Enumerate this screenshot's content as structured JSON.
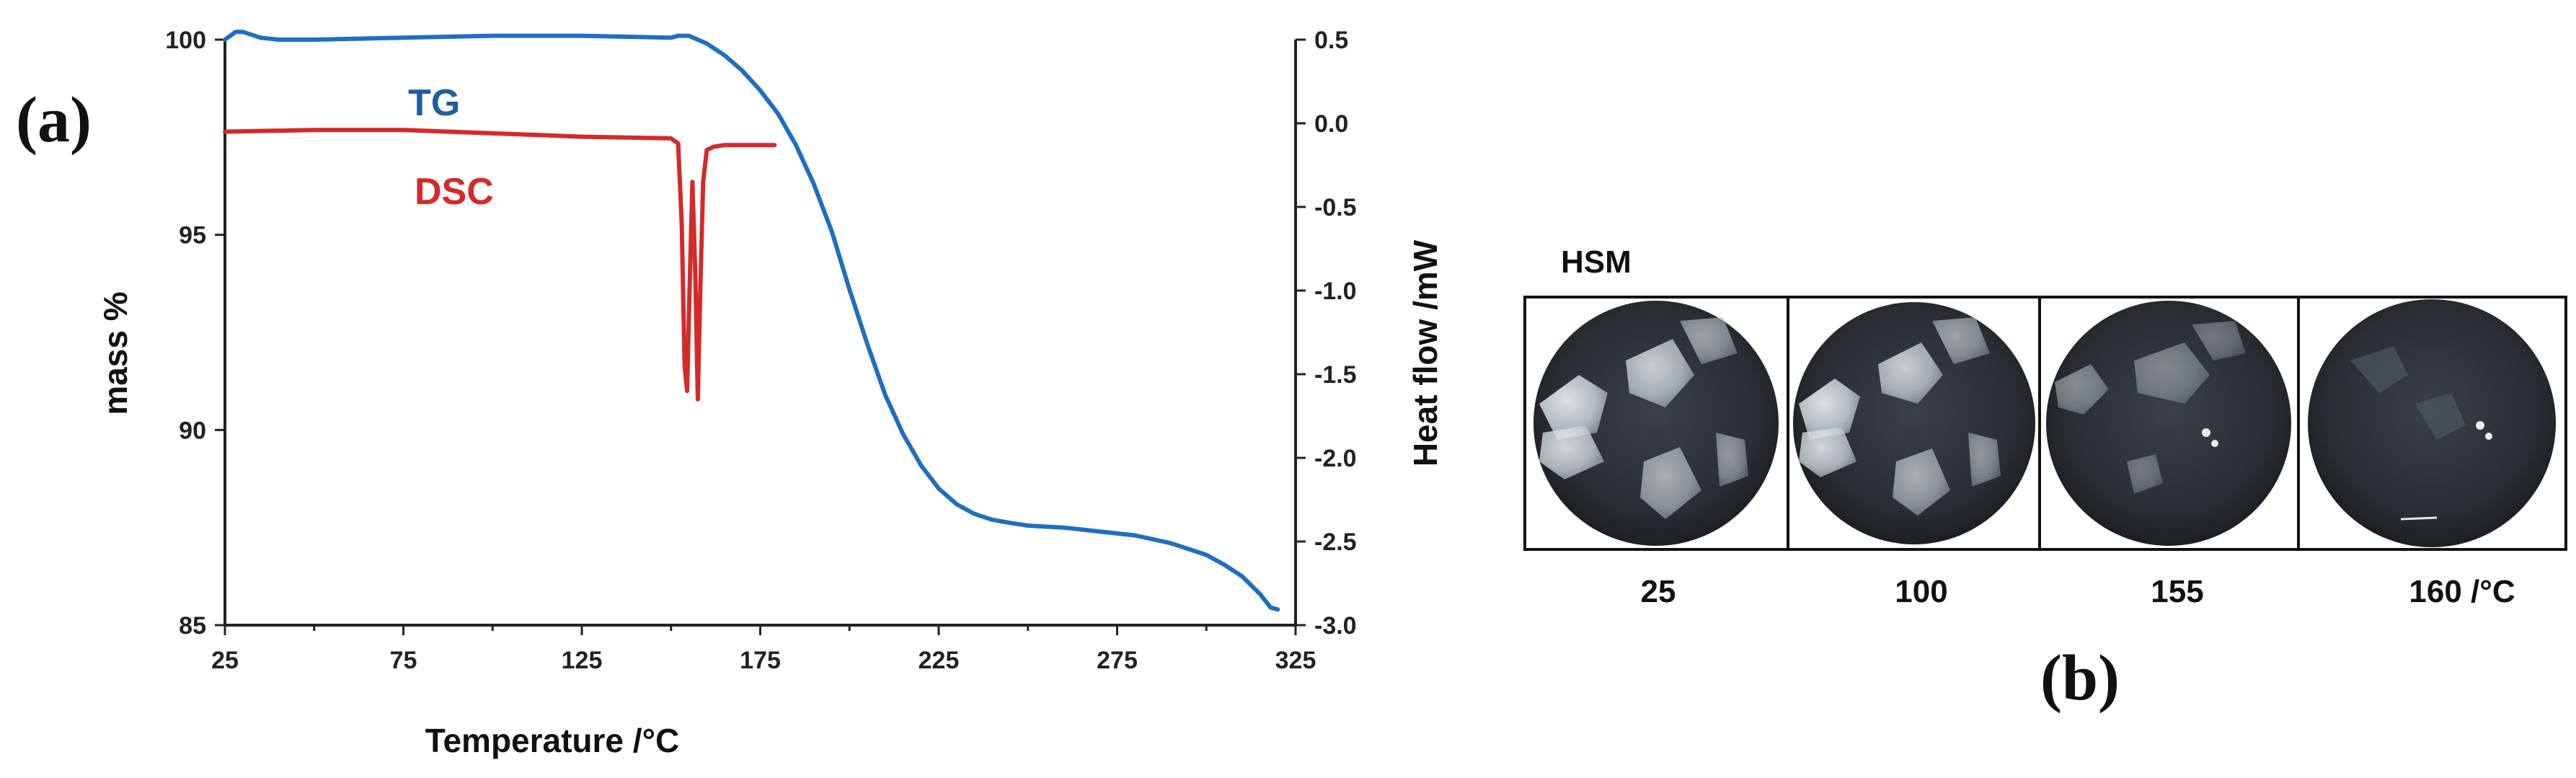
{
  "chart_data": [
    {
      "panel": "(a)",
      "type": "line",
      "xlabel": "Temperature /°C",
      "xlim": [
        25,
        325
      ],
      "x_ticks": [
        "25",
        "75",
        "125",
        "175",
        "225",
        "275",
        "325"
      ],
      "y_left": {
        "label": "mass %",
        "lim": [
          85,
          100
        ],
        "ticks": [
          "100",
          "95",
          "90",
          "85"
        ]
      },
      "y_right": {
        "label": "Heat flow /mW",
        "lim": [
          -3.0,
          0.5
        ],
        "ticks": [
          "0.5",
          "0.0",
          "-0.5",
          "-1.0",
          "-1.5",
          "-2.0",
          "-2.5",
          "-3.0"
        ]
      },
      "series": [
        {
          "name": "TG",
          "axis": "left",
          "color": "#1f6fc0",
          "x": [
            25,
            28,
            30,
            35,
            40,
            50,
            75,
            100,
            125,
            150,
            152,
            155,
            160,
            165,
            170,
            175,
            180,
            185,
            190,
            195,
            200,
            205,
            210,
            215,
            220,
            225,
            230,
            235,
            240,
            245,
            250,
            260,
            270,
            280,
            290,
            300,
            305,
            310,
            315,
            318,
            320
          ],
          "y": [
            100.0,
            100.2,
            100.2,
            100.05,
            100.0,
            100.0,
            100.05,
            100.1,
            100.1,
            100.05,
            100.1,
            100.1,
            99.9,
            99.6,
            99.2,
            98.7,
            98.1,
            97.3,
            96.3,
            95.1,
            93.6,
            92.2,
            90.9,
            89.9,
            89.1,
            88.5,
            88.1,
            87.85,
            87.7,
            87.62,
            87.55,
            87.5,
            87.4,
            87.3,
            87.1,
            86.8,
            86.55,
            86.25,
            85.8,
            85.45,
            85.4
          ]
        },
        {
          "name": "DSC",
          "axis": "right",
          "color": "#d42a2a",
          "x": [
            25,
            50,
            75,
            100,
            125,
            150,
            152,
            153,
            153.8,
            154.5,
            155.3,
            156,
            156.8,
            157.5,
            158.2,
            159,
            160,
            162,
            165,
            175,
            179
          ],
          "y": [
            -0.05,
            -0.04,
            -0.04,
            -0.06,
            -0.08,
            -0.09,
            -0.12,
            -0.6,
            -1.45,
            -1.6,
            -0.9,
            -0.35,
            -0.9,
            -1.65,
            -1.0,
            -0.35,
            -0.16,
            -0.14,
            -0.13,
            -0.13,
            -0.13
          ]
        }
      ]
    }
  ],
  "hsm": {
    "panel": "(b)",
    "title": "HSM",
    "frames": [
      {
        "temp": "25"
      },
      {
        "temp": "100"
      },
      {
        "temp": "155"
      },
      {
        "temp": "160  /°C"
      }
    ]
  }
}
